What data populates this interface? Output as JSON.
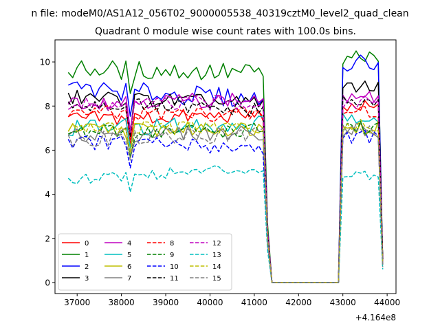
{
  "figure": {
    "suptitle": "n file: modeM0/AS1A12_056T02_9000005538_40319cztM0_level2_quad_clean"
  },
  "chart_data": {
    "type": "line",
    "title": "Quadrant 0 module wise count rates with 100.0s bins.",
    "xlabel": "",
    "ylabel": "",
    "x_offset_label": "+4.164e8",
    "xlim": [
      36500,
      44200
    ],
    "ylim": [
      -0.5,
      11.0
    ],
    "xticks": [
      37000,
      38000,
      39000,
      40000,
      41000,
      42000,
      43000,
      44000
    ],
    "xtick_labels": [
      "37000",
      "38000",
      "39000",
      "40000",
      "41000",
      "42000",
      "43000",
      "44000"
    ],
    "yticks": [
      0,
      2,
      4,
      6,
      8,
      10
    ],
    "ytick_labels": [
      "0",
      "2",
      "4",
      "6",
      "8",
      "10"
    ],
    "grid": false,
    "legend_position": "lower-left",
    "legend_columns": 4,
    "x": {
      "seg1_start": 36800,
      "seg1_end": 41200,
      "gap_start": 41400,
      "gap_end": 42900,
      "seg2_start": 43000,
      "seg2_end": 43800,
      "final": 43900,
      "step": 100
    },
    "series": [
      {
        "name": "0",
        "color": "#ff0000",
        "style": "solid",
        "level": 7.4,
        "end": 7.6,
        "amp": 0.35,
        "peak": 7.9,
        "tail": 1.0
      },
      {
        "name": "1",
        "color": "#008000",
        "style": "solid",
        "level": 9.7,
        "end": 9.5,
        "amp": 0.45,
        "peak": 10.2,
        "tail": 1.0
      },
      {
        "name": "2",
        "color": "#0000ff",
        "style": "solid",
        "level": 8.8,
        "end": 8.3,
        "amp": 0.45,
        "peak": 9.9,
        "tail": 0.9
      },
      {
        "name": "3",
        "color": "#000000",
        "style": "solid",
        "level": 8.4,
        "end": 8.1,
        "amp": 0.35,
        "peak": 8.8,
        "tail": 1.0
      },
      {
        "name": "4",
        "color": "#bf00bf",
        "style": "solid",
        "level": 8.2,
        "end": 8.3,
        "amp": 0.35,
        "peak": 8.4,
        "tail": 0.8
      },
      {
        "name": "5",
        "color": "#00bfbf",
        "style": "solid",
        "level": 7.0,
        "end": 7.2,
        "amp": 0.4,
        "peak": 7.5,
        "tail": 0.8
      },
      {
        "name": "6",
        "color": "#bfbf00",
        "style": "solid",
        "level": 6.9,
        "end": 7.0,
        "amp": 0.35,
        "peak": 7.0,
        "tail": 0.9
      },
      {
        "name": "7",
        "color": "#808080",
        "style": "solid",
        "level": 6.7,
        "end": 6.8,
        "amp": 0.35,
        "peak": 6.9,
        "tail": 0.8
      },
      {
        "name": "8",
        "color": "#ff0000",
        "style": "dashed",
        "level": 7.7,
        "end": 7.6,
        "amp": 0.35,
        "peak": 7.8,
        "tail": 1.0
      },
      {
        "name": "9",
        "color": "#008000",
        "style": "dashed",
        "level": 6.8,
        "end": 6.9,
        "amp": 0.35,
        "peak": 7.0,
        "tail": 0.9
      },
      {
        "name": "10",
        "color": "#0000ff",
        "style": "dashed",
        "level": 6.4,
        "end": 6.1,
        "amp": 0.35,
        "peak": 6.6,
        "tail": 0.8
      },
      {
        "name": "11",
        "color": "#000000",
        "style": "dashed",
        "level": 8.1,
        "end": 7.8,
        "amp": 0.35,
        "peak": 8.3,
        "tail": 1.0
      },
      {
        "name": "12",
        "color": "#bf00bf",
        "style": "dashed",
        "level": 8.0,
        "end": 8.2,
        "amp": 0.35,
        "peak": 8.2,
        "tail": 0.9
      },
      {
        "name": "13",
        "color": "#00bfbf",
        "style": "dashed",
        "level": 4.7,
        "end": 5.2,
        "amp": 0.25,
        "peak": 4.9,
        "tail": 0.6
      },
      {
        "name": "14",
        "color": "#bfbf00",
        "style": "dashed",
        "level": 7.0,
        "end": 7.0,
        "amp": 0.3,
        "peak": 7.1,
        "tail": 0.8
      },
      {
        "name": "15",
        "color": "#808080",
        "style": "dashed",
        "level": 6.5,
        "end": 6.7,
        "amp": 0.35,
        "peak": 6.8,
        "tail": 0.7
      }
    ]
  }
}
